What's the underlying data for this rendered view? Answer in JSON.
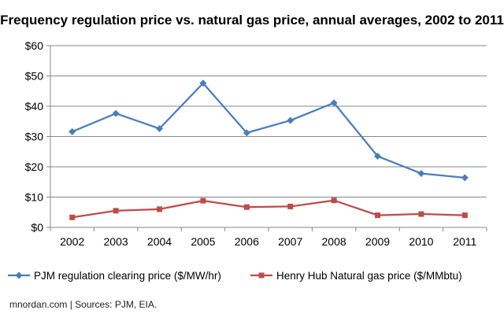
{
  "chart_data": {
    "type": "line",
    "title": "Frequency regulation price vs. natural gas price, annual averages, 2002 to 2011",
    "categories": [
      "2002",
      "2003",
      "2004",
      "2005",
      "2006",
      "2007",
      "2008",
      "2009",
      "2010",
      "2011"
    ],
    "y_ticks": [
      "$0",
      "$10",
      "$20",
      "$30",
      "$40",
      "$50",
      "$60"
    ],
    "ylim": [
      0,
      60
    ],
    "grid": "horizontal",
    "legend_position": "bottom",
    "series": [
      {
        "name": "PJM regulation clearing price ($/MW/hr)",
        "color": "#4a7ebb",
        "marker": "diamond",
        "values": [
          31.6,
          37.6,
          32.6,
          47.6,
          31.2,
          35.3,
          41.1,
          23.5,
          17.8,
          16.4
        ]
      },
      {
        "name": "Henry Hub Natural gas price ($/MMbtu)",
        "color": "#be4b48",
        "marker": "square",
        "values": [
          3.3,
          5.5,
          6.0,
          8.8,
          6.7,
          6.9,
          8.9,
          4.0,
          4.4,
          4.0
        ]
      }
    ]
  },
  "footer": {
    "source": "mnordan.com | Sources: PJM, EIA."
  }
}
